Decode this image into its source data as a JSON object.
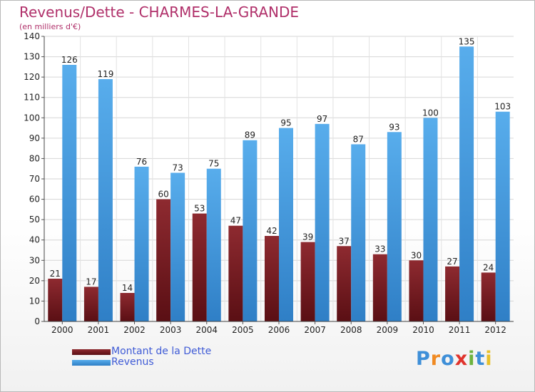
{
  "header": {
    "title": "Revenus/Dette - CHARMES-LA-GRANDE",
    "subtitle": "(en milliers d'€)"
  },
  "colors": {
    "dette": "#7a1d22",
    "revenus": "#4ea3e6",
    "title": "#b0306a",
    "legend_text": "#3f5bd6"
  },
  "logo": {
    "text": "Proxiti"
  },
  "chart_data": {
    "type": "bar",
    "title": "Revenus/Dette - CHARMES-LA-GRANDE",
    "subtitle": "(en milliers d'€)",
    "xlabel": "",
    "ylabel": "",
    "categories": [
      "2000",
      "2001",
      "2002",
      "2003",
      "2004",
      "2005",
      "2006",
      "2007",
      "2008",
      "2009",
      "2010",
      "2011",
      "2012"
    ],
    "series": [
      {
        "name": "Montant de la Dette",
        "color": "#7a1d22",
        "values": [
          21,
          17,
          14,
          60,
          53,
          47,
          42,
          39,
          37,
          33,
          30,
          27,
          24
        ]
      },
      {
        "name": "Revenus",
        "color": "#4ea3e6",
        "values": [
          126,
          119,
          76,
          73,
          75,
          89,
          95,
          97,
          87,
          93,
          100,
          135,
          103
        ]
      }
    ],
    "ylim": [
      0,
      140
    ],
    "yticks": [
      0,
      10,
      20,
      30,
      40,
      50,
      60,
      70,
      80,
      90,
      100,
      110,
      120,
      130,
      140
    ],
    "grid": true,
    "legend": "bottom-left"
  }
}
